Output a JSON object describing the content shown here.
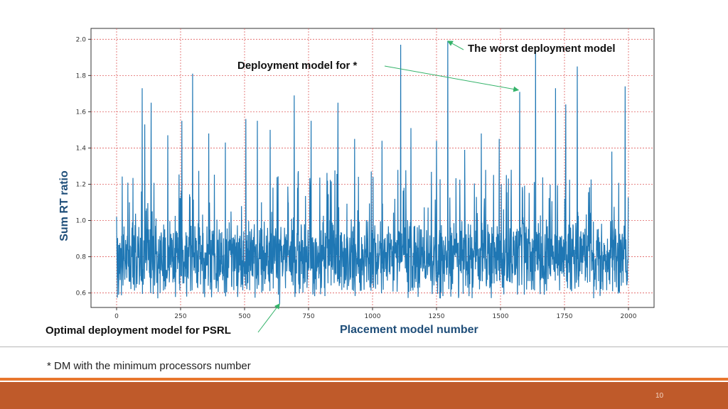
{
  "chart_data": {
    "type": "line",
    "title": "",
    "xlabel": "Placement model number",
    "ylabel": "Sum RT ratio",
    "xlim": [
      -100,
      2100
    ],
    "ylim": [
      0.52,
      2.06
    ],
    "xticks": [
      0,
      250,
      500,
      750,
      1000,
      1250,
      1500,
      1750,
      2000
    ],
    "yticks": [
      0.6,
      0.8,
      1.0,
      1.2,
      1.4,
      1.6,
      1.8,
      2.0
    ],
    "xtick_labels": [
      "0",
      "250",
      "500",
      "750",
      "1000",
      "1250",
      "1500",
      "1750",
      "2000"
    ],
    "ytick_labels": [
      "0.6",
      "0.8",
      "1.0",
      "1.2",
      "1.4",
      "1.6",
      "1.8",
      "2.0"
    ],
    "grid": true,
    "grid_color": "#e06060",
    "series": [
      {
        "color": "#1f77b4",
        "n_points": 2000,
        "x_start": 0,
        "baseline_mean": 0.8,
        "min_value": 0.54,
        "peaks": [
          [
            0,
            1.02
          ],
          [
            50,
            1.1
          ],
          [
            100,
            1.73
          ],
          [
            110,
            1.53
          ],
          [
            135,
            1.65
          ],
          [
            200,
            1.47
          ],
          [
            255,
            1.55
          ],
          [
            297,
            1.81
          ],
          [
            360,
            1.48
          ],
          [
            425,
            1.43
          ],
          [
            505,
            1.56
          ],
          [
            550,
            1.55
          ],
          [
            600,
            1.5
          ],
          [
            694,
            1.69
          ],
          [
            760,
            1.55
          ],
          [
            865,
            1.65
          ],
          [
            930,
            1.45
          ],
          [
            1037,
            1.44
          ],
          [
            1110,
            1.97
          ],
          [
            1150,
            1.51
          ],
          [
            1250,
            1.44
          ],
          [
            1294,
            1.99
          ],
          [
            1360,
            1.39
          ],
          [
            1425,
            1.48
          ],
          [
            1495,
            1.45
          ],
          [
            1575,
            1.71
          ],
          [
            1637,
            1.94
          ],
          [
            1715,
            1.73
          ],
          [
            1755,
            1.64
          ],
          [
            1800,
            1.85
          ],
          [
            1935,
            1.38
          ],
          [
            1987,
            1.74
          ]
        ],
        "optimal_point": [
          637,
          0.54
        ],
        "worst_point": [
          1294,
          1.99
        ]
      }
    ],
    "annotations": [
      {
        "text": "The worst deployment model",
        "target": [
          1294,
          1.99
        ]
      },
      {
        "text": "Deployment model for *",
        "target": [
          1570,
          1.72
        ]
      },
      {
        "text": "Optimal deployment model for PSRL",
        "target": [
          637,
          0.54
        ]
      }
    ]
  },
  "footnote": "* DM with the minimum processors number",
  "page_number": "10",
  "colors": {
    "line": "#1f77b4",
    "axis_label": "#1f4e79",
    "arrow": "#35b36a",
    "footer_band": "#bf5a2a",
    "footer_stripe": "#e8772e"
  }
}
